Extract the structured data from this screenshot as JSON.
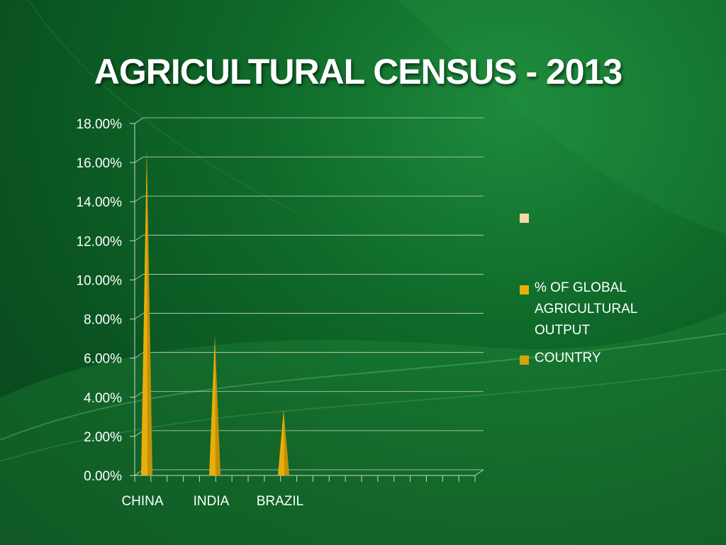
{
  "slide": {
    "title": "AGRICULTURAL CENSUS - 2013"
  },
  "colors": {
    "bar": "#e8ae0c",
    "bar_dark": "#a67a00",
    "grid": "#c9d8c9",
    "text": "#ffffff",
    "legend_blank": "#f5d9a8"
  },
  "chart_data": {
    "type": "bar",
    "categories": [
      "CHINA",
      "INDIA",
      "BRAZIL"
    ],
    "series": [
      {
        "name": "% OF GLOBAL AGRICULTURAL OUTPUT",
        "values": [
          16.5,
          7.0,
          3.2
        ]
      }
    ],
    "ylim": [
      0,
      18
    ],
    "y_tick_labels": [
      "0.00%",
      "2.00%",
      "4.00%",
      "6.00%",
      "8.00%",
      "10.00%",
      "12.00%",
      "14.00%",
      "16.00%",
      "18.00%"
    ],
    "grid": true,
    "bar_shape": "cone",
    "legend_position": "right",
    "legend": [
      {
        "label": "",
        "color": "#f5d9a8"
      },
      {
        "label": "% OF GLOBAL AGRICULTURAL OUTPUT",
        "color": "#e8ae0c"
      },
      {
        "label": "COUNTRY",
        "color": "#d4a20a"
      }
    ]
  }
}
